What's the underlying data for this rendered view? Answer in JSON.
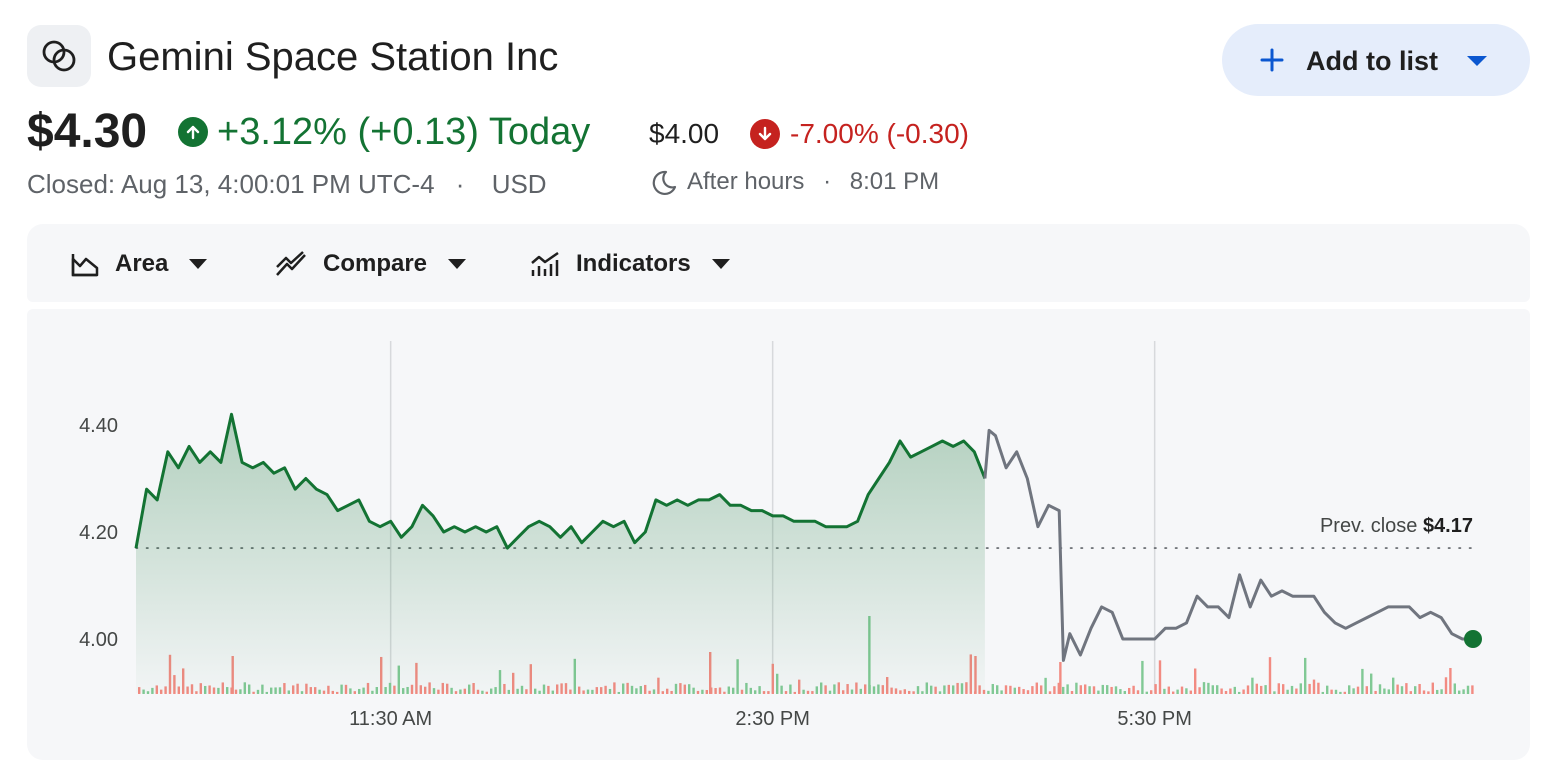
{
  "header": {
    "company_name": "Gemini Space Station Inc",
    "logo_icon": "gemini-logo-icon",
    "add_button_label": "Add to list"
  },
  "quote": {
    "price": "$4.30",
    "change": "+3.12% (+0.13) Today",
    "closed_label": "Closed: Aug 13, 4:00:01 PM UTC-4",
    "separator": "·",
    "currency": "USD"
  },
  "after_hours": {
    "price": "$4.00",
    "change": "-7.00% (-0.30)",
    "label": "After hours",
    "separator": "·",
    "time": "8:01 PM"
  },
  "toolbar": {
    "area_label": "Area",
    "compare_label": "Compare",
    "indicators_label": "Indicators"
  },
  "chart_data": {
    "type": "area",
    "title": "",
    "x_ticks": [
      "11:30 AM",
      "2:30 PM",
      "5:30 PM"
    ],
    "y_ticks": [
      "4.00",
      "4.20",
      "4.40"
    ],
    "ylim": [
      3.97,
      4.48
    ],
    "grid": "vertical",
    "prev_close_label": "Prev. close",
    "prev_close_value": "$4.17",
    "prev_close": 4.17,
    "colors": {
      "regular": "#137333",
      "after_hours": "#70757f",
      "up_volume": "#81c995",
      "down_volume": "#f28b82"
    },
    "series": [
      {
        "session": "regular",
        "points": [
          [
            "9:30",
            4.17
          ],
          [
            "9:35",
            4.28
          ],
          [
            "9:40",
            4.26
          ],
          [
            "9:45",
            4.35
          ],
          [
            "9:50",
            4.32
          ],
          [
            "9:55",
            4.36
          ],
          [
            "10:00",
            4.33
          ],
          [
            "10:05",
            4.35
          ],
          [
            "10:10",
            4.33
          ],
          [
            "10:15",
            4.42
          ],
          [
            "10:20",
            4.33
          ],
          [
            "10:25",
            4.32
          ],
          [
            "10:30",
            4.33
          ],
          [
            "10:35",
            4.31
          ],
          [
            "10:40",
            4.32
          ],
          [
            "10:45",
            4.28
          ],
          [
            "10:50",
            4.3
          ],
          [
            "10:55",
            4.28
          ],
          [
            "11:00",
            4.27
          ],
          [
            "11:05",
            4.24
          ],
          [
            "11:10",
            4.25
          ],
          [
            "11:15",
            4.26
          ],
          [
            "11:20",
            4.22
          ],
          [
            "11:25",
            4.21
          ],
          [
            "11:30",
            4.22
          ],
          [
            "11:35",
            4.19
          ],
          [
            "11:40",
            4.21
          ],
          [
            "11:45",
            4.25
          ],
          [
            "11:50",
            4.23
          ],
          [
            "11:55",
            4.2
          ],
          [
            "12:00",
            4.21
          ],
          [
            "12:05",
            4.2
          ],
          [
            "12:10",
            4.21
          ],
          [
            "12:15",
            4.2
          ],
          [
            "12:20",
            4.21
          ],
          [
            "12:25",
            4.17
          ],
          [
            "12:30",
            4.19
          ],
          [
            "12:35",
            4.21
          ],
          [
            "12:40",
            4.22
          ],
          [
            "12:45",
            4.21
          ],
          [
            "12:50",
            4.19
          ],
          [
            "12:55",
            4.21
          ],
          [
            "13:00",
            4.18
          ],
          [
            "13:05",
            4.2
          ],
          [
            "13:10",
            4.22
          ],
          [
            "13:15",
            4.21
          ],
          [
            "13:20",
            4.22
          ],
          [
            "13:25",
            4.18
          ],
          [
            "13:30",
            4.2
          ],
          [
            "13:35",
            4.26
          ],
          [
            "13:40",
            4.25
          ],
          [
            "13:45",
            4.26
          ],
          [
            "13:50",
            4.25
          ],
          [
            "13:55",
            4.26
          ],
          [
            "14:00",
            4.26
          ],
          [
            "14:05",
            4.27
          ],
          [
            "14:10",
            4.25
          ],
          [
            "14:15",
            4.25
          ],
          [
            "14:20",
            4.24
          ],
          [
            "14:25",
            4.24
          ],
          [
            "14:30",
            4.23
          ],
          [
            "14:35",
            4.23
          ],
          [
            "14:40",
            4.22
          ],
          [
            "14:45",
            4.22
          ],
          [
            "14:50",
            4.22
          ],
          [
            "14:55",
            4.21
          ],
          [
            "15:00",
            4.21
          ],
          [
            "15:05",
            4.21
          ],
          [
            "15:10",
            4.22
          ],
          [
            "15:15",
            4.27
          ],
          [
            "15:20",
            4.3
          ],
          [
            "15:25",
            4.33
          ],
          [
            "15:30",
            4.37
          ],
          [
            "15:35",
            4.34
          ],
          [
            "15:40",
            4.35
          ],
          [
            "15:45",
            4.36
          ],
          [
            "15:50",
            4.37
          ],
          [
            "15:55",
            4.36
          ],
          [
            "16:00",
            4.37
          ],
          [
            "16:05",
            4.35
          ],
          [
            "16:10",
            4.3
          ]
        ]
      },
      {
        "session": "after_hours",
        "points": [
          [
            "16:10",
            4.3
          ],
          [
            "16:12",
            4.39
          ],
          [
            "16:15",
            4.38
          ],
          [
            "16:20",
            4.32
          ],
          [
            "16:25",
            4.35
          ],
          [
            "16:30",
            4.3
          ],
          [
            "16:35",
            4.21
          ],
          [
            "16:40",
            4.25
          ],
          [
            "16:45",
            4.24
          ],
          [
            "16:47",
            3.96
          ],
          [
            "16:50",
            4.01
          ],
          [
            "16:55",
            3.97
          ],
          [
            "17:00",
            4.02
          ],
          [
            "17:05",
            4.06
          ],
          [
            "17:10",
            4.05
          ],
          [
            "17:15",
            4.0
          ],
          [
            "17:20",
            4.0
          ],
          [
            "17:25",
            4.0
          ],
          [
            "17:30",
            4.0
          ],
          [
            "17:35",
            4.02
          ],
          [
            "17:40",
            4.02
          ],
          [
            "17:45",
            4.03
          ],
          [
            "17:50",
            4.08
          ],
          [
            "17:55",
            4.06
          ],
          [
            "18:00",
            4.06
          ],
          [
            "18:05",
            4.04
          ],
          [
            "18:10",
            4.12
          ],
          [
            "18:15",
            4.06
          ],
          [
            "18:20",
            4.11
          ],
          [
            "18:25",
            4.08
          ],
          [
            "18:30",
            4.09
          ],
          [
            "18:35",
            4.08
          ],
          [
            "18:40",
            4.08
          ],
          [
            "18:45",
            4.08
          ],
          [
            "18:50",
            4.05
          ],
          [
            "18:55",
            4.03
          ],
          [
            "19:00",
            4.02
          ],
          [
            "19:05",
            4.03
          ],
          [
            "19:10",
            4.04
          ],
          [
            "19:15",
            4.05
          ],
          [
            "19:20",
            4.06
          ],
          [
            "19:25",
            4.06
          ],
          [
            "19:30",
            4.06
          ],
          [
            "19:35",
            4.04
          ],
          [
            "19:40",
            4.05
          ],
          [
            "19:45",
            4.04
          ],
          [
            "19:50",
            4.01
          ],
          [
            "19:55",
            4.0
          ],
          [
            "20:00",
            4.0
          ]
        ]
      }
    ]
  }
}
